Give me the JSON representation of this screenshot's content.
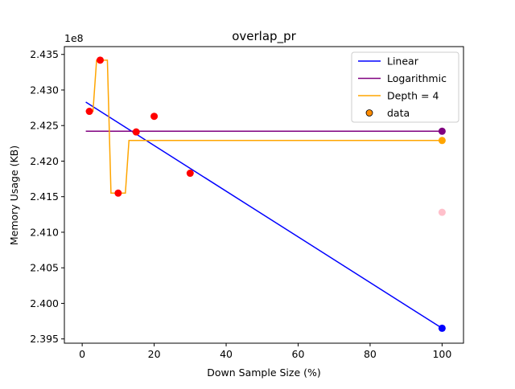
{
  "chart_data": {
    "type": "line",
    "title": "overlap_pr",
    "xlabel": "Down Sample Size (%)",
    "ylabel": "Memory Usage (KB)",
    "offset_label": "1e8",
    "xlim": [
      -4.95,
      105.95
    ],
    "ylim": [
      2.3944,
      2.4361
    ],
    "xticks": [
      0,
      20,
      40,
      60,
      80,
      100
    ],
    "yticks": [
      2.395,
      2.4,
      2.405,
      2.41,
      2.415,
      2.42,
      2.425,
      2.43,
      2.435
    ],
    "ytick_labels": [
      "2.395",
      "2.400",
      "2.405",
      "2.410",
      "2.415",
      "2.420",
      "2.425",
      "2.430",
      "2.435"
    ],
    "legend_position": "top-right",
    "legend": [
      {
        "label": "Linear",
        "kind": "line",
        "color": "#0000ff"
      },
      {
        "label": "Logarithmic",
        "kind": "line",
        "color": "#800080"
      },
      {
        "label": "Depth = 4",
        "kind": "line",
        "color": "#ffa500"
      },
      {
        "label": "data",
        "kind": "marker",
        "color": "#ff8c00"
      }
    ],
    "series": [
      {
        "name": "Linear",
        "kind": "line",
        "color": "#0000ff",
        "x": [
          1,
          100
        ],
        "y": [
          2.4283,
          2.3965
        ]
      },
      {
        "name": "Logarithmic",
        "kind": "line",
        "color": "#800080",
        "x": [
          1,
          100
        ],
        "y": [
          2.4242,
          2.4242
        ]
      },
      {
        "name": "Depth = 4",
        "kind": "step",
        "color": "#ffa500",
        "x": [
          1,
          3,
          4,
          7,
          8,
          12,
          13,
          100
        ],
        "y": [
          2.427,
          2.427,
          2.4342,
          2.4342,
          2.4155,
          2.4155,
          2.4229,
          2.4229
        ]
      },
      {
        "name": "data",
        "kind": "scatter",
        "color": "#ff0000",
        "x": [
          2,
          5,
          10,
          15,
          20,
          30
        ],
        "y": [
          2.427,
          2.4342,
          2.4155,
          2.4241,
          2.4263,
          2.4183
        ]
      },
      {
        "name": "",
        "kind": "scatter-endpoints",
        "points": [
          {
            "x": 100,
            "y": 2.4229,
            "color": "#ffa500"
          },
          {
            "x": 100,
            "y": 2.4242,
            "color": "#800080"
          },
          {
            "x": 100,
            "y": 2.4128,
            "color": "#ffc0cb"
          },
          {
            "x": 100,
            "y": 2.3965,
            "color": "#0000ff"
          }
        ]
      }
    ]
  }
}
